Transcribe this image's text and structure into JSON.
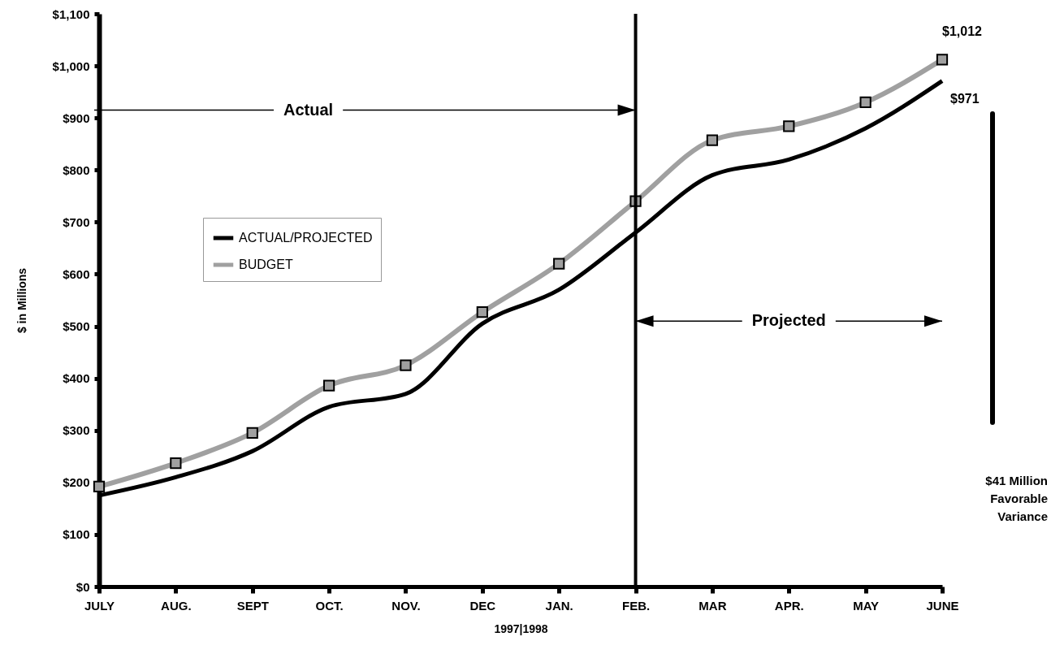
{
  "chart_data": {
    "type": "line",
    "ylabel": "$ in Millions",
    "xlabel": "1997|1998",
    "categories": [
      "JULY",
      "AUG.",
      "SEPT",
      "OCT.",
      "NOV.",
      "DEC",
      "JAN.",
      "FEB.",
      "MAR",
      "APR.",
      "MAY",
      "JUNE"
    ],
    "series": [
      {
        "name": "ACTUAL/PROJECTED",
        "color": "#000000",
        "marker": "none",
        "values": [
          175,
          210,
          260,
          345,
          370,
          505,
          570,
          680,
          790,
          820,
          880,
          971
        ],
        "value_labels": [
          null,
          null,
          null,
          null,
          null,
          null,
          null,
          null,
          null,
          null,
          null,
          "$971"
        ]
      },
      {
        "name": "BUDGET",
        "color": "#a0a0a0",
        "marker": "square",
        "values": [
          192,
          237,
          295,
          386,
          425,
          527,
          620,
          740,
          857,
          884,
          930,
          1012
        ],
        "value_labels": [
          null,
          null,
          null,
          null,
          null,
          null,
          null,
          null,
          null,
          null,
          null,
          "$1,012"
        ]
      }
    ],
    "ylim": [
      0,
      1100
    ],
    "yticks": [
      {
        "value": 0,
        "label": "$0"
      },
      {
        "value": 100,
        "label": "$100"
      },
      {
        "value": 200,
        "label": "$200"
      },
      {
        "value": 300,
        "label": "$300"
      },
      {
        "value": 400,
        "label": "$400"
      },
      {
        "value": 500,
        "label": "$500"
      },
      {
        "value": 600,
        "label": "$600"
      },
      {
        "value": 700,
        "label": "$700"
      },
      {
        "value": 800,
        "label": "$800"
      },
      {
        "value": 900,
        "label": "$900"
      },
      {
        "value": 1000,
        "label": "$1,000"
      },
      {
        "value": 1100,
        "label": "$1,100"
      }
    ],
    "ref_lines": [
      {
        "axis": "x",
        "value": "FEB.",
        "color": "#000000"
      }
    ],
    "annotations": [
      {
        "text": "Actual",
        "x": "FEB.",
        "y": 915
      },
      {
        "text": "Projected",
        "x": "FEB.",
        "y": 510
      },
      "$41 Million\nFavorable\nVariance"
    ],
    "legend": "left",
    "grid": false
  }
}
